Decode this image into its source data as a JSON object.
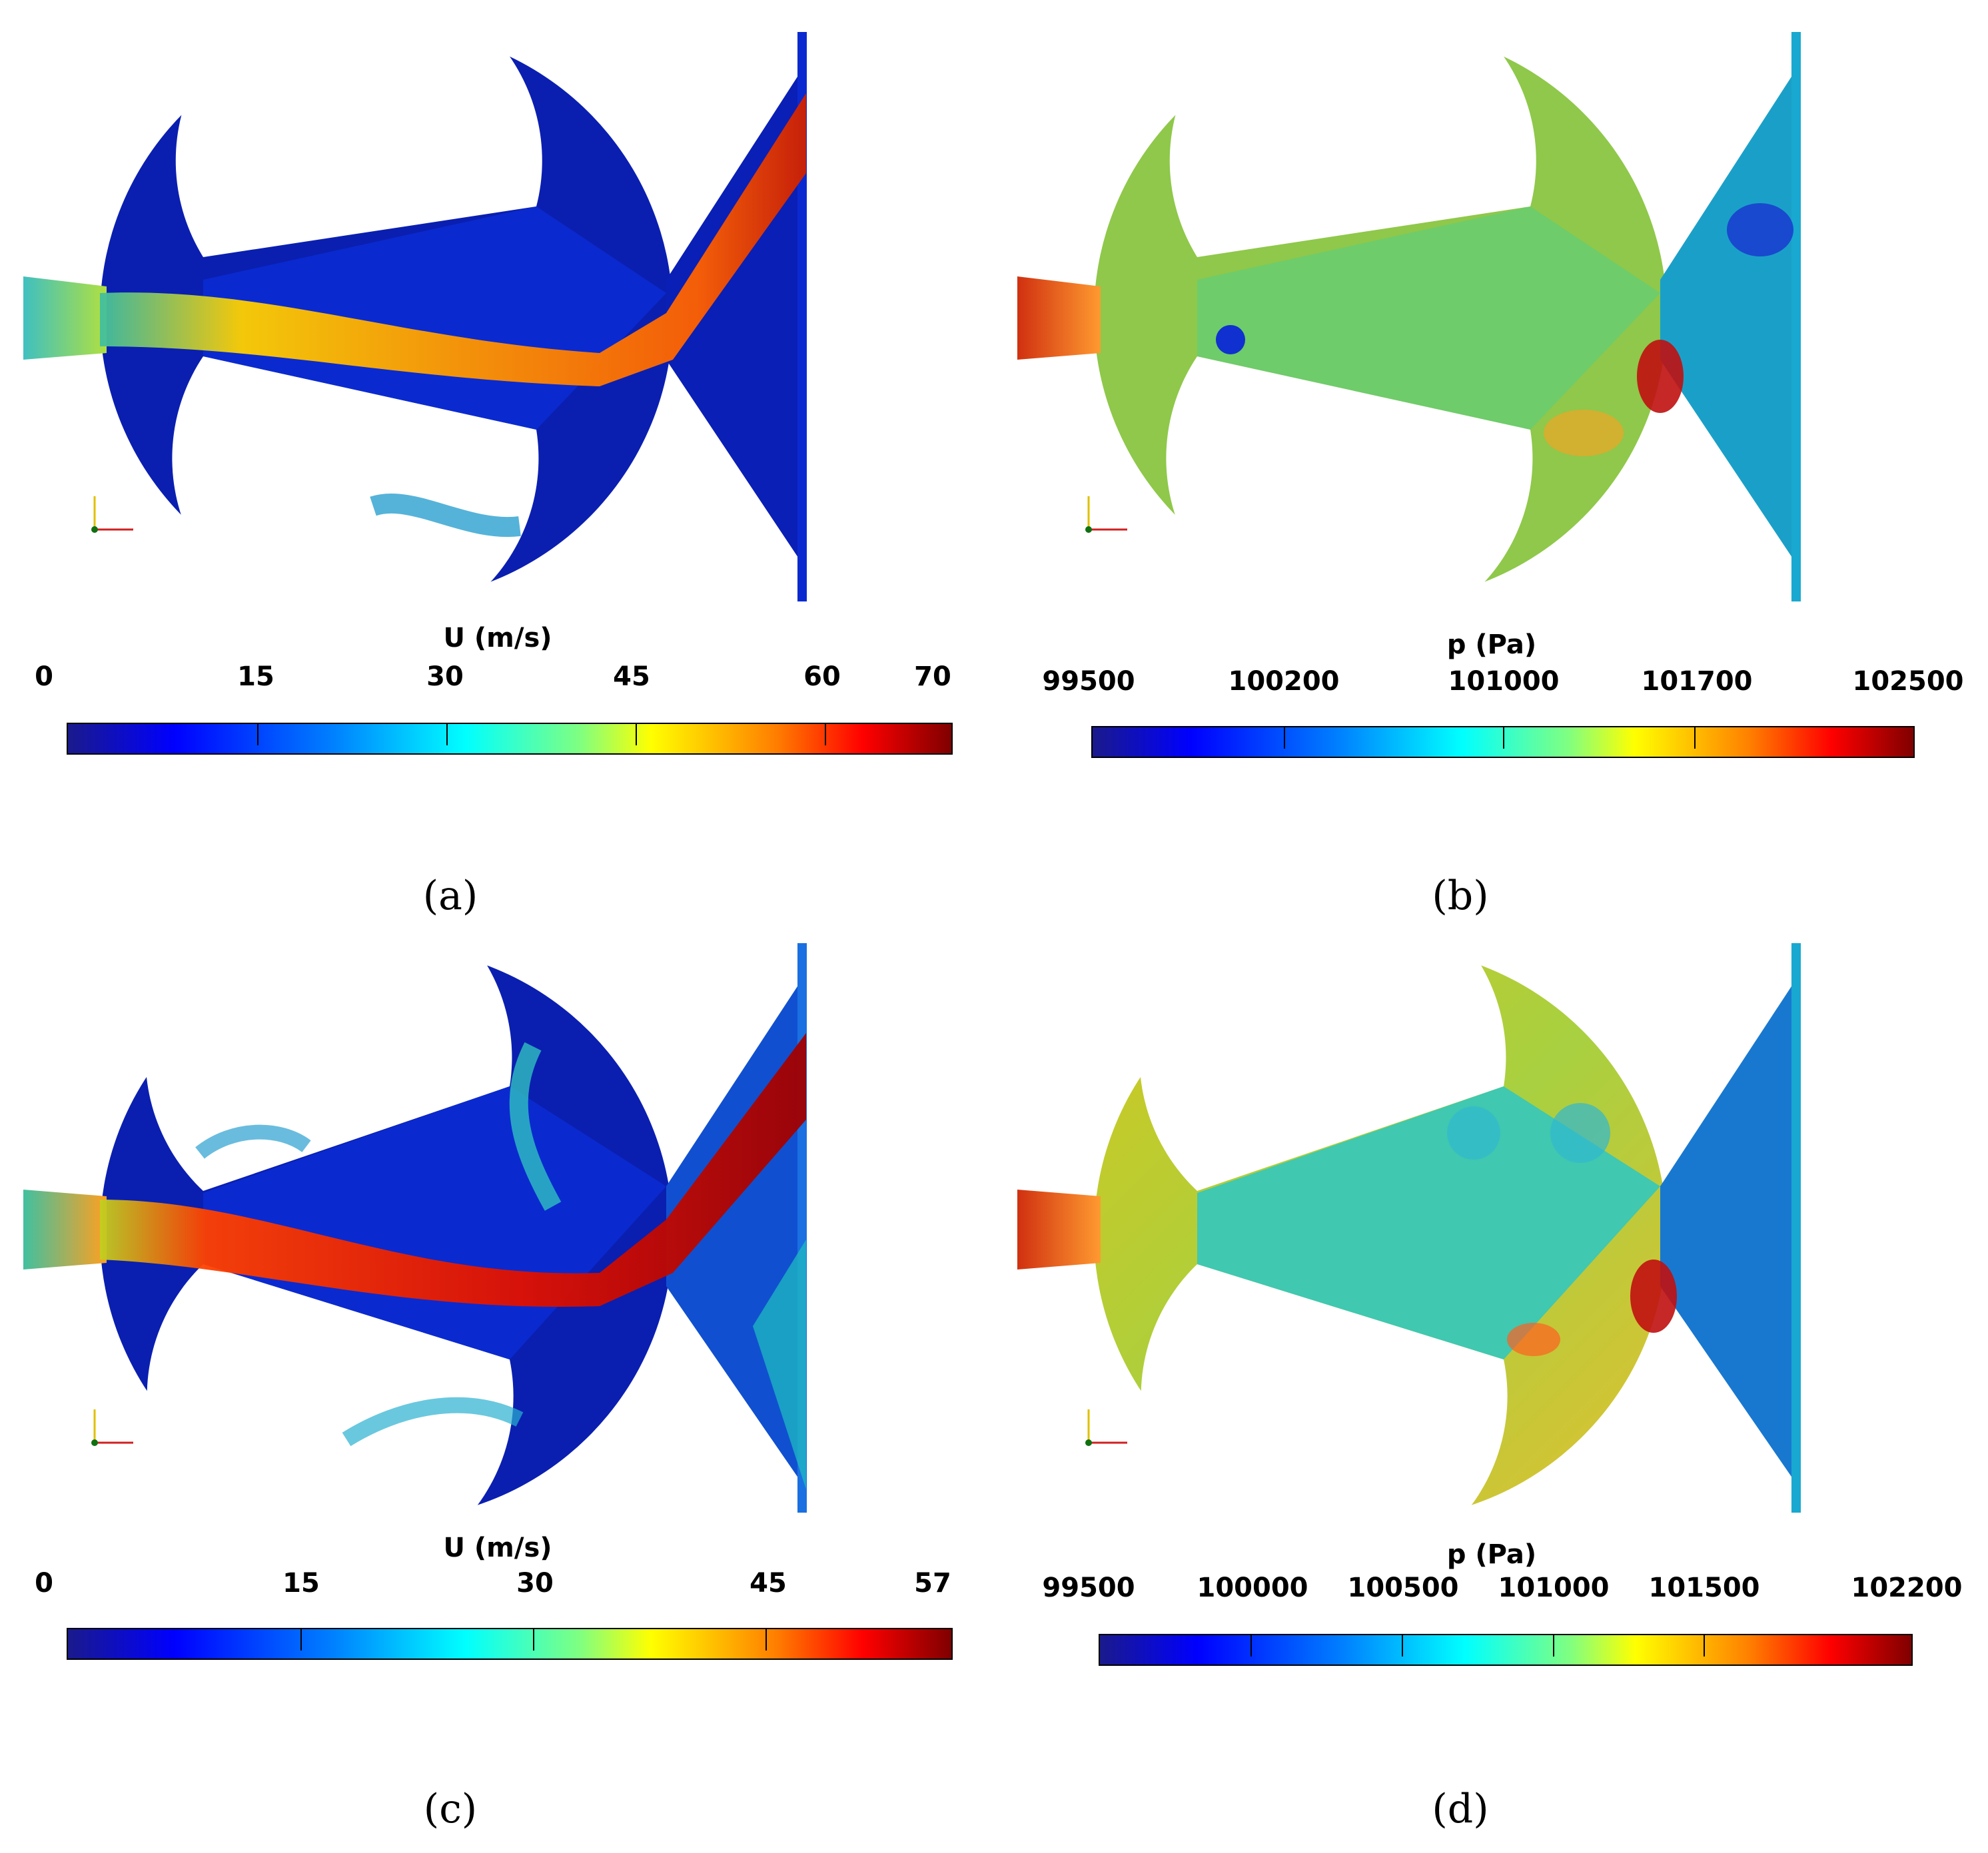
{
  "panels": [
    {
      "id": "a",
      "caption": "(a)",
      "colorbar": {
        "title": "U (m/s)",
        "ticks": [
          "0",
          "15",
          "30",
          "45",
          "60",
          "70"
        ],
        "tick_values": [
          0,
          15,
          30,
          45,
          60,
          70
        ],
        "range": [
          0,
          70
        ]
      },
      "field": "velocity"
    },
    {
      "id": "b",
      "caption": "(b)",
      "colorbar": {
        "title": "p (Pa)",
        "ticks": [
          "99500",
          "100200",
          "101000",
          "101700",
          "102500"
        ],
        "tick_values": [
          99500,
          100200,
          101000,
          101700,
          102500
        ],
        "range": [
          99500,
          102500
        ]
      },
      "field": "pressure"
    },
    {
      "id": "c",
      "caption": "(c)",
      "colorbar": {
        "title": "U (m/s)",
        "ticks": [
          "0",
          "15",
          "30",
          "45",
          "57"
        ],
        "tick_values": [
          0,
          15,
          30,
          45,
          57
        ],
        "range": [
          0,
          57
        ]
      },
      "field": "velocity"
    },
    {
      "id": "d",
      "caption": "(d)",
      "colorbar": {
        "title": "p (Pa)",
        "ticks": [
          "99500",
          "100000",
          "100500",
          "101000",
          "101500",
          "102200"
        ],
        "tick_values": [
          99500,
          100000,
          100500,
          101000,
          101500,
          102200
        ],
        "range": [
          99500,
          102200
        ]
      },
      "field": "pressure"
    }
  ],
  "colors": {
    "dark_blue": "#00008b",
    "blue": "#0000ff",
    "cyan": "#00ffff",
    "green": "#7fd35f",
    "yellow": "#ffff00",
    "orange": "#ff8000",
    "red": "#ff0000",
    "dark_red": "#800000"
  }
}
